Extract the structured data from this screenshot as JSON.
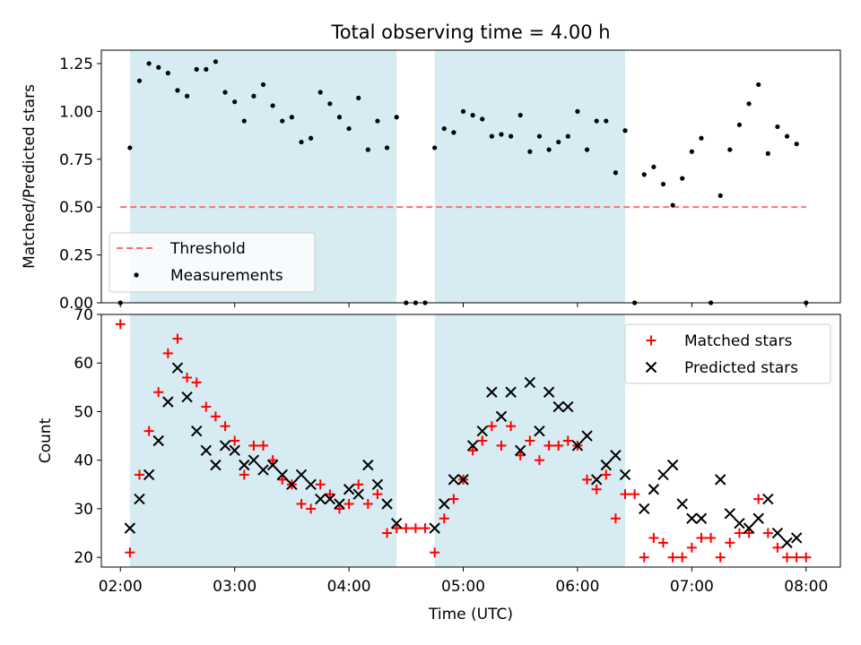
{
  "chart_data": [
    {
      "type": "scatter",
      "title": "Total observing time = 4.00 h",
      "xlabel": "",
      "ylabel": "Matched/Predicted stars",
      "xlim": [
        "01:50",
        "08:18"
      ],
      "ylim": [
        0,
        1.32
      ],
      "xticks": [
        "02:00",
        "03:00",
        "04:00",
        "05:00",
        "06:00",
        "07:00",
        "08:00"
      ],
      "yticks": [
        "0.00",
        "0.25",
        "0.50",
        "0.75",
        "1.00",
        "1.25"
      ],
      "shaded_intervals": [
        [
          "02:05",
          "04:25"
        ],
        [
          "04:45",
          "06:25"
        ]
      ],
      "threshold": {
        "name": "Threshold",
        "value": 0.5,
        "x_range": [
          "02:00",
          "08:00"
        ],
        "color": "#ff7070"
      },
      "legend_position": "lower left",
      "series": [
        {
          "name": "Measurements",
          "color": "#000000",
          "points": [
            [
              "02:00",
              0.0
            ],
            [
              "02:05",
              0.81
            ],
            [
              "02:10",
              1.16
            ],
            [
              "02:15",
              1.25
            ],
            [
              "02:20",
              1.23
            ],
            [
              "02:25",
              1.2
            ],
            [
              "02:30",
              1.11
            ],
            [
              "02:35",
              1.08
            ],
            [
              "02:40",
              1.22
            ],
            [
              "02:45",
              1.22
            ],
            [
              "02:50",
              1.26
            ],
            [
              "02:55",
              1.1
            ],
            [
              "03:00",
              1.05
            ],
            [
              "03:05",
              0.95
            ],
            [
              "03:10",
              1.08
            ],
            [
              "03:15",
              1.14
            ],
            [
              "03:20",
              1.03
            ],
            [
              "03:25",
              0.95
            ],
            [
              "03:30",
              0.97
            ],
            [
              "03:35",
              0.84
            ],
            [
              "03:40",
              0.86
            ],
            [
              "03:45",
              1.1
            ],
            [
              "03:50",
              1.04
            ],
            [
              "03:55",
              0.97
            ],
            [
              "04:00",
              0.91
            ],
            [
              "04:05",
              1.07
            ],
            [
              "04:10",
              0.8
            ],
            [
              "04:15",
              0.95
            ],
            [
              "04:20",
              0.81
            ],
            [
              "04:25",
              0.97
            ],
            [
              "04:30",
              0.0
            ],
            [
              "04:35",
              0.0
            ],
            [
              "04:40",
              0.0
            ],
            [
              "04:45",
              0.81
            ],
            [
              "04:50",
              0.91
            ],
            [
              "04:55",
              0.89
            ],
            [
              "05:00",
              1.0
            ],
            [
              "05:05",
              0.98
            ],
            [
              "05:10",
              0.96
            ],
            [
              "05:15",
              0.87
            ],
            [
              "05:20",
              0.88
            ],
            [
              "05:25",
              0.87
            ],
            [
              "05:30",
              0.98
            ],
            [
              "05:35",
              0.79
            ],
            [
              "05:40",
              0.87
            ],
            [
              "05:45",
              0.8
            ],
            [
              "05:50",
              0.84
            ],
            [
              "05:55",
              0.87
            ],
            [
              "06:00",
              1.0
            ],
            [
              "06:05",
              0.8
            ],
            [
              "06:10",
              0.95
            ],
            [
              "06:15",
              0.95
            ],
            [
              "06:20",
              0.68
            ],
            [
              "06:25",
              0.9
            ],
            [
              "06:30",
              0.0
            ],
            [
              "06:35",
              0.67
            ],
            [
              "06:40",
              0.71
            ],
            [
              "06:45",
              0.62
            ],
            [
              "06:50",
              0.51
            ],
            [
              "06:55",
              0.65
            ],
            [
              "07:00",
              0.79
            ],
            [
              "07:05",
              0.86
            ],
            [
              "07:10",
              0.0
            ],
            [
              "07:15",
              0.56
            ],
            [
              "07:20",
              0.8
            ],
            [
              "07:25",
              0.93
            ],
            [
              "07:30",
              1.04
            ],
            [
              "07:35",
              1.14
            ],
            [
              "07:40",
              0.78
            ],
            [
              "07:45",
              0.92
            ],
            [
              "07:50",
              0.87
            ],
            [
              "07:55",
              0.83
            ],
            [
              "08:00",
              0.0
            ]
          ]
        }
      ]
    },
    {
      "type": "scatter",
      "title": "",
      "xlabel": "Time (UTC)",
      "ylabel": "Count",
      "xlim": [
        "01:50",
        "08:18"
      ],
      "ylim": [
        18,
        70
      ],
      "xticks": [
        "02:00",
        "03:00",
        "04:00",
        "05:00",
        "06:00",
        "07:00",
        "08:00"
      ],
      "yticks": [
        "20",
        "30",
        "40",
        "50",
        "60",
        "70"
      ],
      "shaded_intervals": [
        [
          "02:05",
          "04:25"
        ],
        [
          "04:45",
          "06:25"
        ]
      ],
      "legend_position": "upper right",
      "x": [
        "02:00",
        "02:05",
        "02:10",
        "02:15",
        "02:20",
        "02:25",
        "02:30",
        "02:35",
        "02:40",
        "02:45",
        "02:50",
        "02:55",
        "03:00",
        "03:05",
        "03:10",
        "03:15",
        "03:20",
        "03:25",
        "03:30",
        "03:35",
        "03:40",
        "03:45",
        "03:50",
        "03:55",
        "04:00",
        "04:05",
        "04:10",
        "04:15",
        "04:20",
        "04:25",
        "04:30",
        "04:35",
        "04:40",
        "04:45",
        "04:50",
        "04:55",
        "05:00",
        "05:05",
        "05:10",
        "05:15",
        "05:20",
        "05:25",
        "05:30",
        "05:35",
        "05:40",
        "05:45",
        "05:50",
        "05:55",
        "06:00",
        "06:05",
        "06:10",
        "06:15",
        "06:20",
        "06:25",
        "06:30",
        "06:35",
        "06:40",
        "06:45",
        "06:50",
        "06:55",
        "07:00",
        "07:05",
        "07:10",
        "07:15",
        "07:20",
        "07:25",
        "07:30",
        "07:35",
        "07:40",
        "07:45",
        "07:50",
        "07:55",
        "08:00"
      ],
      "series": [
        {
          "name": "Matched stars",
          "marker": "plus",
          "color": "#ff0000",
          "values": [
            68,
            21,
            37,
            46,
            54,
            62,
            65,
            57,
            56,
            51,
            49,
            47,
            44,
            37,
            43,
            43,
            40,
            36,
            35,
            31,
            30,
            35,
            33,
            30,
            31,
            35,
            31,
            33,
            25,
            26,
            26,
            26,
            26,
            21,
            28,
            32,
            36,
            42,
            44,
            47,
            43,
            47,
            41,
            44,
            40,
            43,
            43,
            44,
            43,
            36,
            34,
            37,
            28,
            33,
            33,
            20,
            24,
            23,
            20,
            20,
            22,
            24,
            24,
            20,
            23,
            25,
            25,
            32,
            25,
            22,
            20,
            20,
            20
          ]
        },
        {
          "name": "Predicted stars",
          "marker": "x",
          "color": "#000000",
          "values": [
            null,
            26,
            32,
            37,
            44,
            52,
            59,
            53,
            46,
            42,
            39,
            43,
            42,
            39,
            40,
            38,
            39,
            37,
            35,
            37,
            35,
            32,
            32,
            31,
            34,
            33,
            39,
            35,
            31,
            27,
            null,
            null,
            null,
            26,
            31,
            36,
            36,
            43,
            46,
            54,
            49,
            54,
            42,
            56,
            46,
            54,
            51,
            51,
            43,
            45,
            36,
            39,
            41,
            37,
            null,
            30,
            34,
            37,
            39,
            31,
            28,
            28,
            null,
            36,
            29,
            27,
            26,
            28,
            32,
            25,
            23,
            24,
            null
          ]
        }
      ]
    }
  ]
}
